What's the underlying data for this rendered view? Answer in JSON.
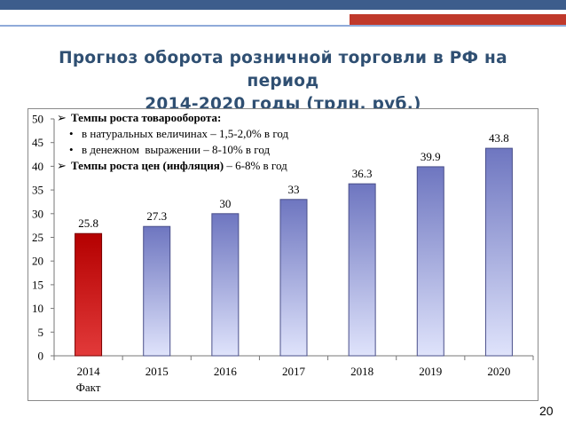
{
  "slide": {
    "title_line1": "Прогноз оборота розничной торговли в РФ на период",
    "title_line2": "2014-2020 годы (трлн. руб.)",
    "page_number": "20"
  },
  "notes": {
    "item1": "Темпы роста товарооборота:",
    "item1_sub1": "в натуральных величинах – 1,5-2,0% в год",
    "item1_sub2": "в денежном  выражении – 8-10% в год",
    "item2_bold": "Темпы роста цен (инфляция)",
    "item2_rest": " – 6-8% в год"
  },
  "chart_data": {
    "type": "bar",
    "categories": [
      "2014",
      "2015",
      "2016",
      "2017",
      "2018",
      "2019",
      "2020"
    ],
    "category_sublabels": [
      "Факт",
      "",
      "",
      "",
      "",
      "",
      ""
    ],
    "values": [
      25.8,
      27.3,
      30,
      33,
      36.3,
      39.9,
      43.8
    ],
    "value_labels": [
      "25.8",
      "27.3",
      "30",
      "33",
      "36.3",
      "39.9",
      "43.8"
    ],
    "ylim": [
      0,
      50
    ],
    "yticks": [
      "0",
      "5",
      "10",
      "15",
      "20",
      "25",
      "30",
      "35",
      "40",
      "45",
      "50"
    ],
    "grid": false,
    "colors": {
      "highlight_bar": "#c00000",
      "forecast_bar_top": "#6e76c0",
      "forecast_bar_bottom": "#dfe3fb"
    }
  }
}
